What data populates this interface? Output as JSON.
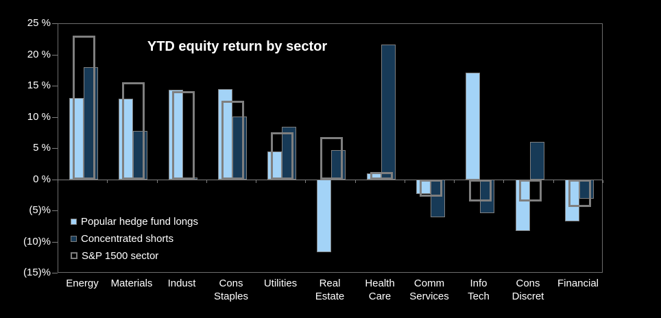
{
  "title": "YTD equity return by sector",
  "colors": {
    "background": "#000000",
    "text": "#ffffff",
    "axis": "#808080",
    "plot_border": "#6e6e6e",
    "longs": "#a3d3f7",
    "shorts": "#173a57",
    "sp_outline": "#7f7f7f"
  },
  "y_axis": {
    "tick_labels": [
      "25 %",
      "20 %",
      "15 %",
      "10 %",
      "5 %",
      "0 %",
      "(5)%",
      "(10)%",
      "(15)%"
    ],
    "max": 25,
    "min": -15,
    "step": 5
  },
  "x_axis": {
    "label_lines": [
      [
        "Energy"
      ],
      [
        "Materials"
      ],
      [
        "Indust"
      ],
      [
        "Cons",
        "Staples"
      ],
      [
        "Utilities"
      ],
      [
        "Real",
        "Estate"
      ],
      [
        "Health",
        "Care"
      ],
      [
        "Comm",
        "Services"
      ],
      [
        "Info",
        "Tech"
      ],
      [
        "Cons",
        "Discret"
      ],
      [
        "Financial"
      ]
    ]
  },
  "legend": {
    "items": [
      {
        "label": "Popular hedge fund longs",
        "series_key": "longs",
        "swatch": "filled-light-blue"
      },
      {
        "label": "Concentrated shorts",
        "series_key": "shorts",
        "swatch": "filled-dark-blue"
      },
      {
        "label": "S&P 1500 sector",
        "series_key": "sp",
        "swatch": "hollow-gray-outline"
      }
    ]
  },
  "chart_data": {
    "type": "bar",
    "title": "YTD equity return by sector",
    "xlabel": "",
    "ylabel": "",
    "ylim": [
      -15,
      25
    ],
    "y_tick_step": 5,
    "grid": false,
    "legend_position": "inside-bottom-left",
    "categories": [
      "Energy",
      "Materials",
      "Indust",
      "Cons Staples",
      "Utilities",
      "Real Estate",
      "Health Care",
      "Comm Services",
      "Info Tech",
      "Cons Discret",
      "Financial"
    ],
    "series": [
      {
        "name": "Popular hedge fund longs",
        "key": "longs",
        "style": "filled",
        "color": "#a3d3f7",
        "values": [
          13.0,
          12.9,
          14.3,
          14.4,
          4.5,
          -11.7,
          0.9,
          -2.4,
          17.1,
          -8.3,
          -6.8
        ]
      },
      {
        "name": "Concentrated shorts",
        "key": "shorts",
        "style": "filled",
        "color": "#173a57",
        "values": [
          18.0,
          7.7,
          0.3,
          10.1,
          8.4,
          4.7,
          21.6,
          -6.1,
          -5.4,
          6.0,
          -3.1
        ]
      },
      {
        "name": "S&P 1500 sector",
        "key": "sp",
        "style": "outline",
        "color": "#7f7f7f",
        "values": [
          23.0,
          15.6,
          14.1,
          12.6,
          7.5,
          6.8,
          1.2,
          -2.8,
          -3.6,
          -3.6,
          -4.4
        ]
      }
    ]
  }
}
